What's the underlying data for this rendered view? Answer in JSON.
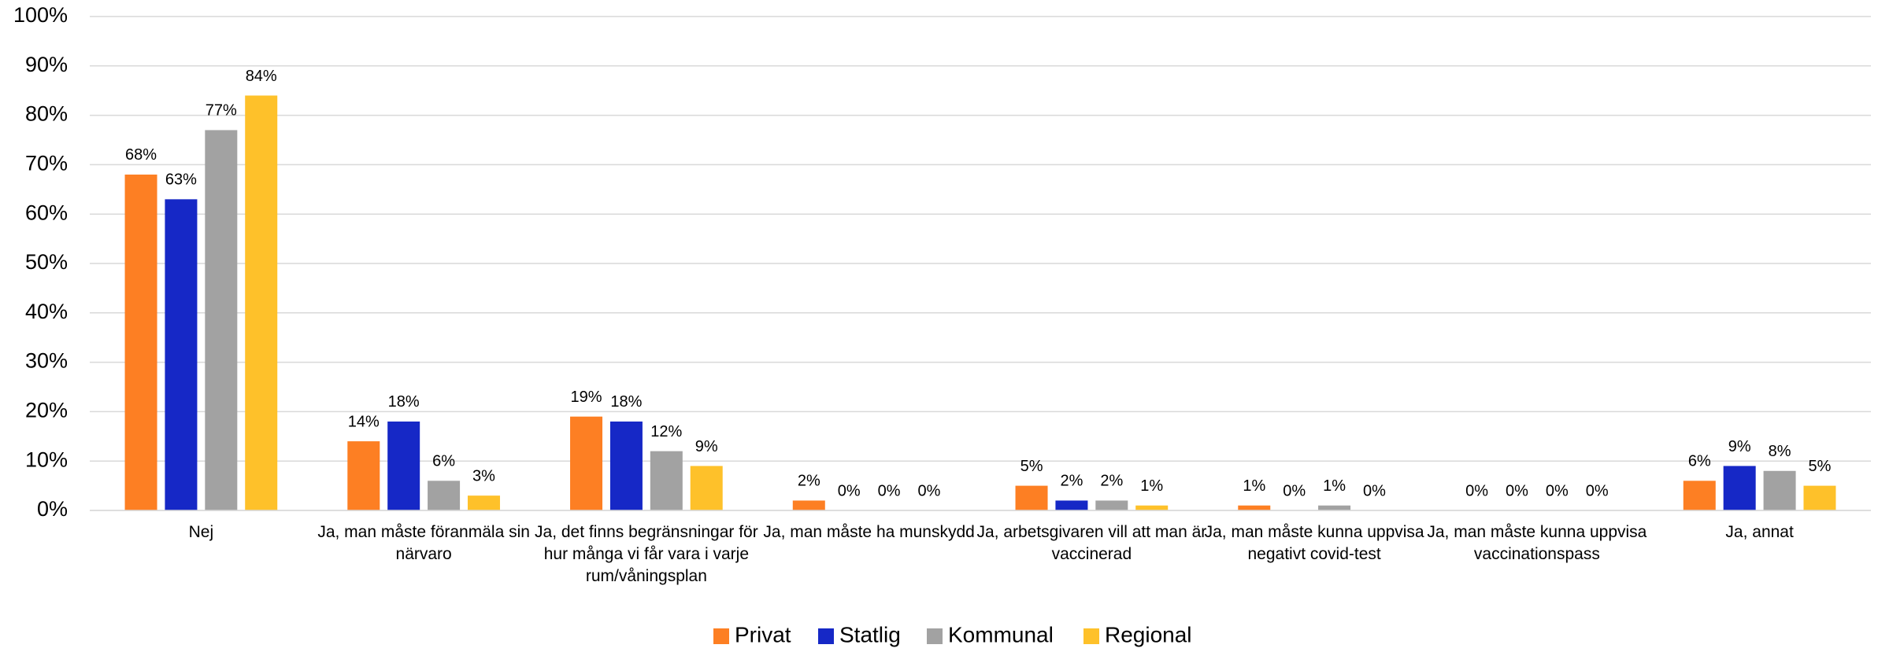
{
  "chart_data": {
    "type": "bar",
    "categories": [
      "Nej",
      "Ja, man måste föranmäla sin närvaro",
      "Ja, det finns begränsningar för hur många vi får vara i varje rum/våningsplan",
      "Ja, man måste ha munskydd",
      "Ja, arbetsgivaren vill att man är vaccinerad",
      "Ja, man måste kunna uppvisa negativt covid-test",
      "Ja, man måste kunna uppvisa vaccinationspass",
      "Ja, annat"
    ],
    "series": [
      {
        "name": "Privat",
        "color": "#fd7f23",
        "values": [
          68,
          14,
          19,
          2,
          5,
          1,
          0,
          6
        ],
        "value_labels": [
          "68%",
          "14%",
          "19%",
          "2%",
          "5%",
          "1%",
          "0%",
          "6%"
        ]
      },
      {
        "name": "Statlig",
        "color": "#1628c6",
        "values": [
          63,
          18,
          18,
          0,
          2,
          0,
          0,
          9
        ],
        "value_labels": [
          "63%",
          "18%",
          "18%",
          "0%",
          "2%",
          "0%",
          "0%",
          "9%"
        ]
      },
      {
        "name": "Kommunal",
        "color": "#a2a2a2",
        "values": [
          77,
          6,
          12,
          0,
          2,
          1,
          0,
          8
        ],
        "value_labels": [
          "77%",
          "6%",
          "12%",
          "0%",
          "2%",
          "1%",
          "0%",
          "8%"
        ]
      },
      {
        "name": "Regional",
        "color": "#fec12a",
        "values": [
          84,
          3,
          9,
          0,
          1,
          0,
          0,
          5
        ],
        "value_labels": [
          "84%",
          "3%",
          "9%",
          "0%",
          "1%",
          "0%",
          "0%",
          "5%"
        ]
      }
    ],
    "ylim": [
      0,
      100
    ],
    "yticks": [
      {
        "value": 0,
        "label": "0%"
      },
      {
        "value": 10,
        "label": "10%"
      },
      {
        "value": 20,
        "label": "20%"
      },
      {
        "value": 30,
        "label": "30%"
      },
      {
        "value": 40,
        "label": "40%"
      },
      {
        "value": 50,
        "label": "50%"
      },
      {
        "value": 60,
        "label": "60%"
      },
      {
        "value": 70,
        "label": "70%"
      },
      {
        "value": 80,
        "label": "80%"
      },
      {
        "value": 90,
        "label": "90%"
      },
      {
        "value": 100,
        "label": "100%"
      }
    ],
    "grid": true,
    "legend": "bottom"
  }
}
